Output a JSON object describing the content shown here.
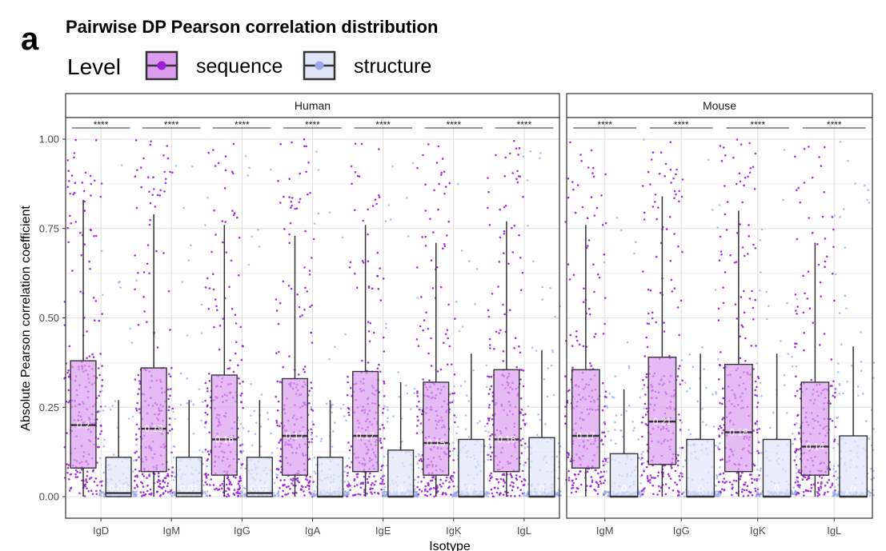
{
  "panel_letter": "a",
  "chart_data": {
    "type": "box",
    "title": "Pairwise DP Pearson correlation distribution",
    "xlabel": "Isotype",
    "ylabel": "Absolute Pearson correlation coefficient",
    "ylim": [
      0,
      1.05
    ],
    "yticks": [
      0.0,
      0.25,
      0.5,
      0.75,
      1.0
    ],
    "ytick_labels": [
      "0.00",
      "0.25",
      "0.50",
      "0.75",
      "1.00"
    ],
    "grid": true,
    "legend": {
      "title": "Level",
      "placement": "top",
      "entries": [
        {
          "name": "sequence",
          "fill": "#dc9cf0",
          "point": "#9b1fd6"
        },
        {
          "name": "structure",
          "fill": "#dfe4f8",
          "point": "#9aaae8"
        }
      ]
    },
    "significance_label": "****",
    "facets": [
      {
        "name": "Human",
        "categories": [
          "IgD",
          "IgM",
          "IgG",
          "IgA",
          "IgE",
          "IgK",
          "IgL"
        ],
        "series": [
          {
            "name": "sequence",
            "boxes": [
              {
                "lower_whisker": 0.0,
                "q1": 0.08,
                "median": 0.2,
                "q3": 0.38,
                "upper_whisker": 0.83,
                "label": "0.2"
              },
              {
                "lower_whisker": 0.0,
                "q1": 0.07,
                "median": 0.19,
                "q3": 0.36,
                "upper_whisker": 0.79,
                "label": "0.19"
              },
              {
                "lower_whisker": 0.0,
                "q1": 0.06,
                "median": 0.16,
                "q3": 0.34,
                "upper_whisker": 0.76,
                "label": "0.16"
              },
              {
                "lower_whisker": 0.0,
                "q1": 0.06,
                "median": 0.17,
                "q3": 0.33,
                "upper_whisker": 0.73,
                "label": "0.17"
              },
              {
                "lower_whisker": 0.0,
                "q1": 0.07,
                "median": 0.17,
                "q3": 0.35,
                "upper_whisker": 0.76,
                "label": "0.17"
              },
              {
                "lower_whisker": 0.0,
                "q1": 0.06,
                "median": 0.15,
                "q3": 0.32,
                "upper_whisker": 0.71,
                "label": "0.15"
              },
              {
                "lower_whisker": 0.0,
                "q1": 0.07,
                "median": 0.16,
                "q3": 0.355,
                "upper_whisker": 0.77,
                "label": "0.16"
              }
            ]
          },
          {
            "name": "structure",
            "boxes": [
              {
                "lower_whisker": 0.0,
                "q1": 0.0,
                "median": 0.01,
                "q3": 0.11,
                "upper_whisker": 0.27,
                "label": "0.01"
              },
              {
                "lower_whisker": 0.0,
                "q1": 0.0,
                "median": 0.01,
                "q3": 0.11,
                "upper_whisker": 0.27,
                "label": "0.01"
              },
              {
                "lower_whisker": 0.0,
                "q1": 0.0,
                "median": 0.01,
                "q3": 0.11,
                "upper_whisker": 0.27,
                "label": "0.01"
              },
              {
                "lower_whisker": 0.0,
                "q1": 0.0,
                "median": 0.0,
                "q3": 0.11,
                "upper_whisker": 0.27,
                "label": "0"
              },
              {
                "lower_whisker": 0.0,
                "q1": 0.0,
                "median": 0.0,
                "q3": 0.13,
                "upper_whisker": 0.32,
                "label": "0"
              },
              {
                "lower_whisker": 0.0,
                "q1": 0.0,
                "median": 0.0,
                "q3": 0.16,
                "upper_whisker": 0.4,
                "label": "0"
              },
              {
                "lower_whisker": 0.0,
                "q1": 0.0,
                "median": 0.0,
                "q3": 0.165,
                "upper_whisker": 0.41,
                "label": "0"
              }
            ]
          }
        ]
      },
      {
        "name": "Mouse",
        "categories": [
          "IgM",
          "IgG",
          "IgK",
          "IgL"
        ],
        "series": [
          {
            "name": "sequence",
            "boxes": [
              {
                "lower_whisker": 0.0,
                "q1": 0.08,
                "median": 0.17,
                "q3": 0.355,
                "upper_whisker": 0.76,
                "label": "0.17"
              },
              {
                "lower_whisker": 0.0,
                "q1": 0.09,
                "median": 0.21,
                "q3": 0.39,
                "upper_whisker": 0.84,
                "label": "0.21"
              },
              {
                "lower_whisker": 0.0,
                "q1": 0.07,
                "median": 0.18,
                "q3": 0.37,
                "upper_whisker": 0.8,
                "label": "0.18"
              },
              {
                "lower_whisker": 0.0,
                "q1": 0.06,
                "median": 0.14,
                "q3": 0.32,
                "upper_whisker": 0.71,
                "label": "0.14"
              }
            ]
          },
          {
            "name": "structure",
            "boxes": [
              {
                "lower_whisker": 0.0,
                "q1": 0.0,
                "median": 0.0,
                "q3": 0.12,
                "upper_whisker": 0.3,
                "label": "0"
              },
              {
                "lower_whisker": 0.0,
                "q1": 0.0,
                "median": 0.0,
                "q3": 0.16,
                "upper_whisker": 0.4,
                "label": "0"
              },
              {
                "lower_whisker": 0.0,
                "q1": 0.0,
                "median": 0.0,
                "q3": 0.16,
                "upper_whisker": 0.4,
                "label": "0"
              },
              {
                "lower_whisker": 0.0,
                "q1": 0.0,
                "median": 0.0,
                "q3": 0.17,
                "upper_whisker": 0.42,
                "label": "0"
              }
            ]
          }
        ]
      }
    ]
  }
}
